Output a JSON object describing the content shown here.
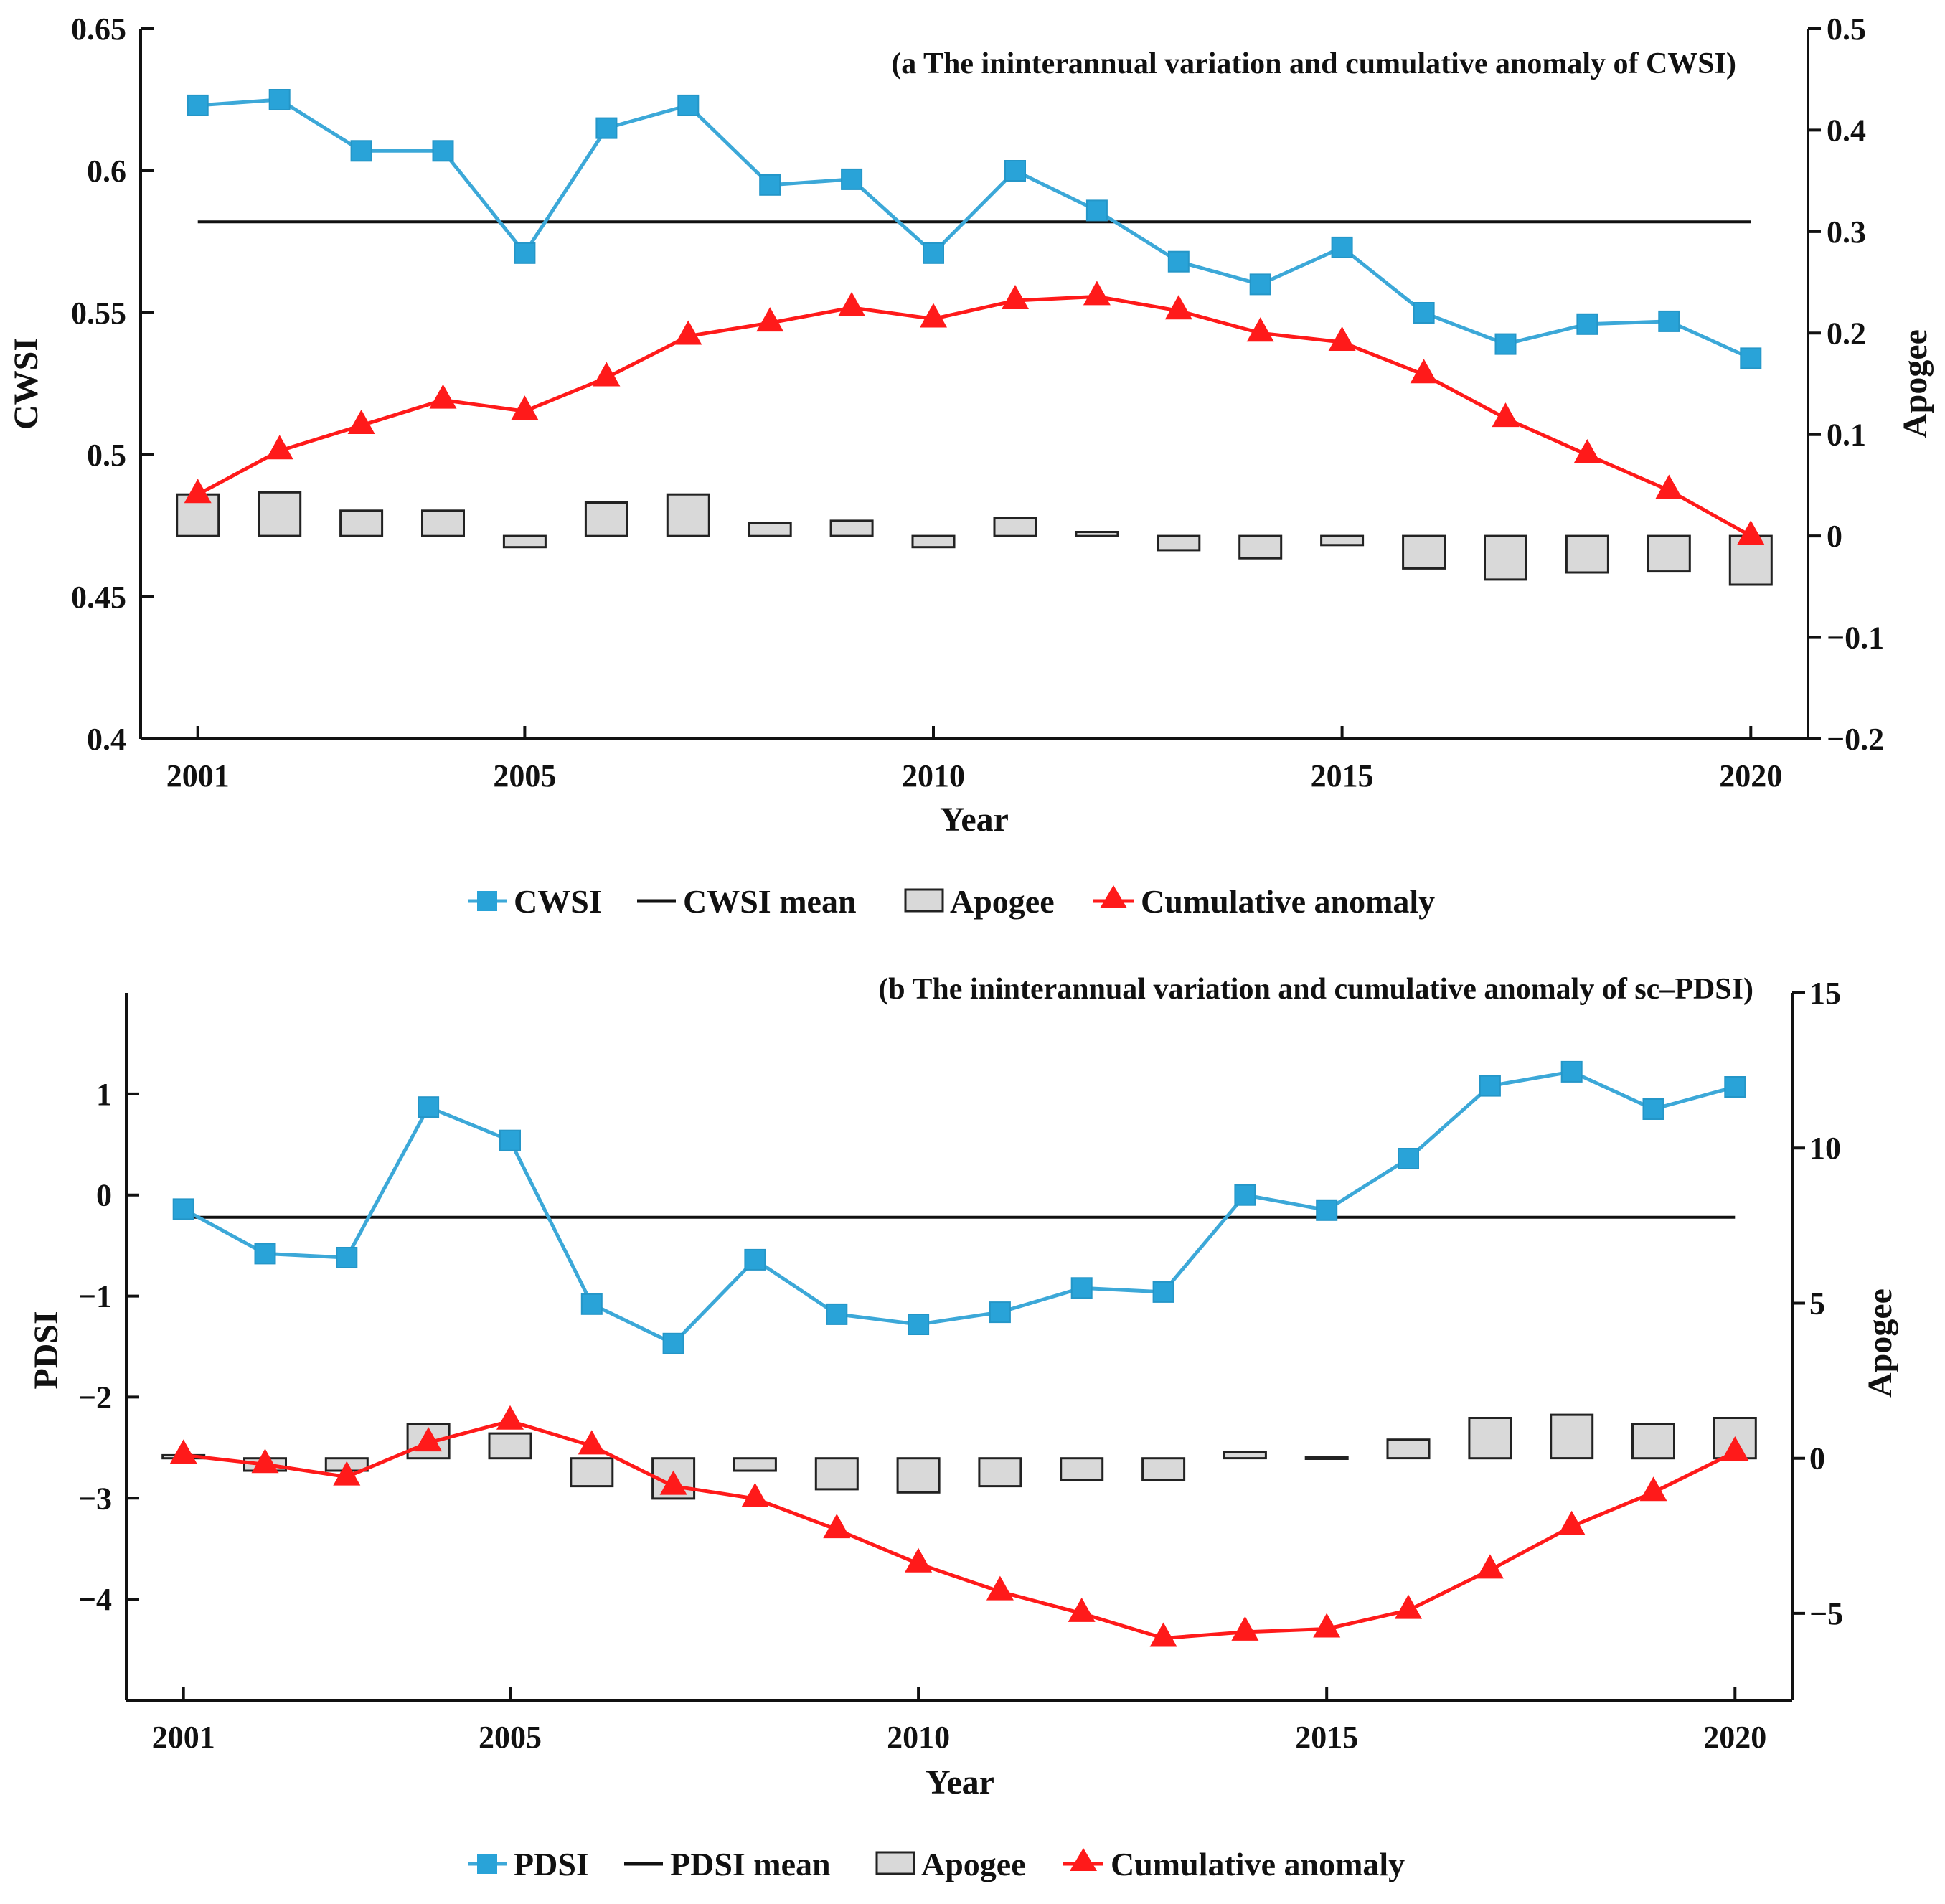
{
  "colors": {
    "series": "#3ca8d8",
    "series_marker": "#29a3d8",
    "mean": "#111111",
    "apogee_fill": "#d9d9d9",
    "apogee_stroke": "#222222",
    "cumulative": "#ff1a1a",
    "axis": "#111111"
  },
  "chart_data": [
    {
      "type": "line",
      "panel": "a",
      "title": "(a The ininterannual variation and cumulative anomaly of CWSI)",
      "xlabel": "Year",
      "ylabel": "CWSI",
      "y2label": "Apogee",
      "xlim": [
        2000.3,
        2020.7
      ],
      "ylim": [
        0.4,
        0.65
      ],
      "y2lim": [
        -0.2,
        0.5
      ],
      "xticks": [
        2001,
        2005,
        2010,
        2015,
        2020
      ],
      "yticks": [
        0.4,
        0.45,
        0.5,
        0.55,
        0.6,
        0.65
      ],
      "ytick_labels": [
        "0.4",
        "0.45",
        "0.5",
        "0.55",
        "0.6",
        "0.65"
      ],
      "y2ticks": [
        -0.2,
        -0.1,
        0,
        0.1,
        0.2,
        0.3,
        0.4,
        0.5
      ],
      "y2tick_labels": [
        "−0.2",
        "−0.1",
        "0",
        "0.1",
        "0.2",
        "0.3",
        "0.4",
        "0.5"
      ],
      "x": [
        2001,
        2002,
        2003,
        2004,
        2005,
        2006,
        2007,
        2008,
        2009,
        2010,
        2011,
        2012,
        2013,
        2014,
        2015,
        2016,
        2017,
        2018,
        2019,
        2020
      ],
      "series_name": "CWSI",
      "series": [
        0.623,
        0.625,
        0.607,
        0.607,
        0.571,
        0.615,
        0.623,
        0.595,
        0.597,
        0.571,
        0.6,
        0.586,
        0.568,
        0.56,
        0.573,
        0.55,
        0.539,
        0.546,
        0.547,
        0.534
      ],
      "mean_name": "CWSI mean",
      "mean": 0.582,
      "apogee_name": "Apogee",
      "apogee": [
        0.041,
        0.043,
        0.025,
        0.025,
        -0.011,
        0.033,
        0.041,
        0.013,
        0.015,
        -0.011,
        0.018,
        0.004,
        -0.014,
        -0.022,
        -0.009,
        -0.032,
        -0.043,
        -0.036,
        -0.035,
        -0.048
      ],
      "cumulative_name": "Cumulative anomaly",
      "cumulative": [
        0.041,
        0.084,
        0.109,
        0.134,
        0.123,
        0.156,
        0.197,
        0.21,
        0.225,
        0.214,
        0.232,
        0.236,
        0.222,
        0.2,
        0.191,
        0.159,
        0.116,
        0.08,
        0.045,
        0.0
      ],
      "legend": [
        "CWSI",
        "CWSI mean",
        "Apogee",
        "Cumulative anomaly"
      ]
    },
    {
      "type": "line",
      "panel": "b",
      "title": "(b The ininterannual variation and cumulative anomaly of sc–PDSI)",
      "xlabel": "Year",
      "ylabel": "PDSI",
      "y2label": "Apogee",
      "xlim": [
        2000.3,
        2020.7
      ],
      "ylim": [
        -5,
        2
      ],
      "y2lim": [
        -7.8,
        15
      ],
      "xticks": [
        2001,
        2005,
        2010,
        2015,
        2020
      ],
      "yticks": [
        -4,
        -3,
        -2,
        -1,
        0,
        1
      ],
      "ytick_labels": [
        "−4",
        "−3",
        "−2",
        "−1",
        "0",
        "1"
      ],
      "y2ticks": [
        -5,
        0,
        5,
        10,
        15
      ],
      "y2tick_labels": [
        "−5",
        "0",
        "5",
        "10",
        "15"
      ],
      "x": [
        2001,
        2002,
        2003,
        2004,
        2005,
        2006,
        2007,
        2008,
        2009,
        2010,
        2011,
        2012,
        2013,
        2014,
        2015,
        2016,
        2017,
        2018,
        2019,
        2020
      ],
      "series_name": "PDSI",
      "series": [
        -0.14,
        -0.58,
        -0.62,
        0.87,
        0.54,
        -1.08,
        -1.47,
        -0.64,
        -1.18,
        -1.28,
        -1.16,
        -0.92,
        -0.96,
        0.0,
        -0.15,
        0.36,
        1.08,
        1.22,
        0.85,
        1.07
      ],
      "mean_name": "PDSI mean",
      "mean": -0.22,
      "apogee_name": "Apogee",
      "apogee": [
        0.1,
        -0.4,
        -0.4,
        1.1,
        0.8,
        -0.9,
        -1.3,
        -0.4,
        -1.0,
        -1.1,
        -0.9,
        -0.7,
        -0.7,
        0.2,
        0.05,
        0.6,
        1.3,
        1.4,
        1.1,
        1.3
      ],
      "cumulative_name": "Cumulative anomaly",
      "cumulative": [
        0.1,
        -0.2,
        -0.6,
        0.5,
        1.2,
        0.4,
        -0.9,
        -1.3,
        -2.3,
        -3.4,
        -4.3,
        -5.0,
        -5.8,
        -5.6,
        -5.5,
        -4.9,
        -3.6,
        -2.2,
        -1.1,
        0.2
      ],
      "legend": [
        "PDSI",
        "PDSI mean",
        "Apogee",
        "Cumulative anomaly"
      ]
    }
  ]
}
